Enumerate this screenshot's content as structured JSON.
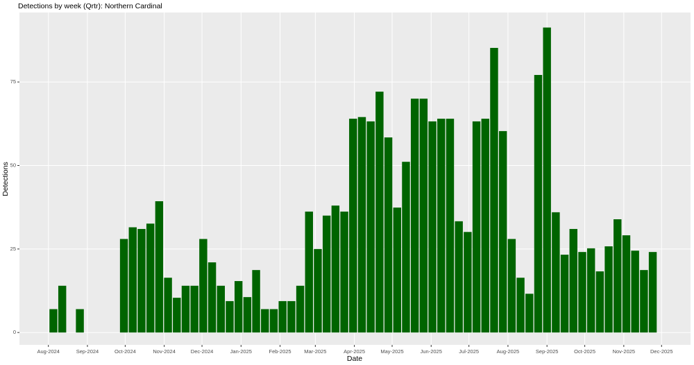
{
  "chart_data": {
    "type": "bar",
    "title": "Detections by week (Qrtr): Northern Cardinal",
    "x_label": "Date",
    "y_label": "Detections",
    "color": "#006400",
    "grid": true,
    "x": [
      "2024-08-05",
      "2024-08-12",
      "2024-08-26",
      "2024-09-30",
      "2024-10-07",
      "2024-10-14",
      "2024-10-21",
      "2024-10-28",
      "2024-11-04",
      "2024-11-11",
      "2024-11-18",
      "2024-11-25",
      "2024-12-02",
      "2024-12-09",
      "2024-12-16",
      "2024-12-23",
      "2024-12-30",
      "2025-01-06",
      "2025-01-13",
      "2025-01-20",
      "2025-01-27",
      "2025-02-03",
      "2025-02-10",
      "2025-02-17",
      "2025-02-24",
      "2025-03-03",
      "2025-03-10",
      "2025-03-17",
      "2025-03-24",
      "2025-03-31",
      "2025-04-07",
      "2025-04-14",
      "2025-04-21",
      "2025-04-28",
      "2025-05-05",
      "2025-05-12",
      "2025-05-19",
      "2025-05-26",
      "2025-06-02",
      "2025-06-09",
      "2025-06-16",
      "2025-06-23",
      "2025-06-30",
      "2025-07-07",
      "2025-07-14",
      "2025-07-21",
      "2025-07-28",
      "2025-08-04",
      "2025-08-11",
      "2025-08-18",
      "2025-08-25",
      "2025-09-01",
      "2025-09-08",
      "2025-09-15",
      "2025-09-22",
      "2025-09-29",
      "2025-10-06",
      "2025-10-13",
      "2025-10-20",
      "2025-10-27",
      "2025-11-03",
      "2025-11-10",
      "2025-11-17",
      "2025-11-24"
    ],
    "values": [
      7,
      14,
      7,
      28,
      31.5,
      31,
      32.6,
      39.3,
      16.4,
      10.4,
      14,
      14,
      28,
      21,
      14,
      9.4,
      15.4,
      10.6,
      18.7,
      7,
      7,
      9.4,
      9.4,
      14,
      36.2,
      25,
      35,
      38,
      36.2,
      64,
      64.5,
      63.2,
      72.1,
      58.4,
      37.4,
      51.1,
      70,
      70,
      63.2,
      64,
      64,
      33.3,
      30.1,
      63.2,
      64,
      85.2,
      60.3,
      28,
      16.4,
      11.6,
      77.1,
      91.3,
      36,
      23.3,
      31,
      24.1,
      25.2,
      18.3,
      25.8,
      33.9,
      29.1,
      24.5,
      18.7,
      24.1
    ],
    "xlim": [
      "2024-07-09",
      "2025-12-24"
    ],
    "xticks": [
      {
        "value": "2024-08-01",
        "label": "Aug-2024"
      },
      {
        "value": "2024-09-01",
        "label": "Sep-2024"
      },
      {
        "value": "2024-10-01",
        "label": "Oct-2024"
      },
      {
        "value": "2024-11-01",
        "label": "Nov-2024"
      },
      {
        "value": "2024-12-01",
        "label": "Dec-2024"
      },
      {
        "value": "2025-01-01",
        "label": "Jan-2025"
      },
      {
        "value": "2025-02-01",
        "label": "Feb-2025"
      },
      {
        "value": "2025-03-01",
        "label": "Mar-2025"
      },
      {
        "value": "2025-04-01",
        "label": "Apr-2025"
      },
      {
        "value": "2025-05-01",
        "label": "May-2025"
      },
      {
        "value": "2025-06-01",
        "label": "Jun-2025"
      },
      {
        "value": "2025-07-01",
        "label": "Jul-2025"
      },
      {
        "value": "2025-08-01",
        "label": "Aug-2025"
      },
      {
        "value": "2025-09-01",
        "label": "Sep-2025"
      },
      {
        "value": "2025-10-01",
        "label": "Oct-2025"
      },
      {
        "value": "2025-11-01",
        "label": "Nov-2025"
      },
      {
        "value": "2025-12-01",
        "label": "Dec-2025"
      }
    ],
    "ylim": [
      -3.7,
      95.8
    ],
    "yticks": [
      0,
      25,
      50,
      75
    ]
  }
}
